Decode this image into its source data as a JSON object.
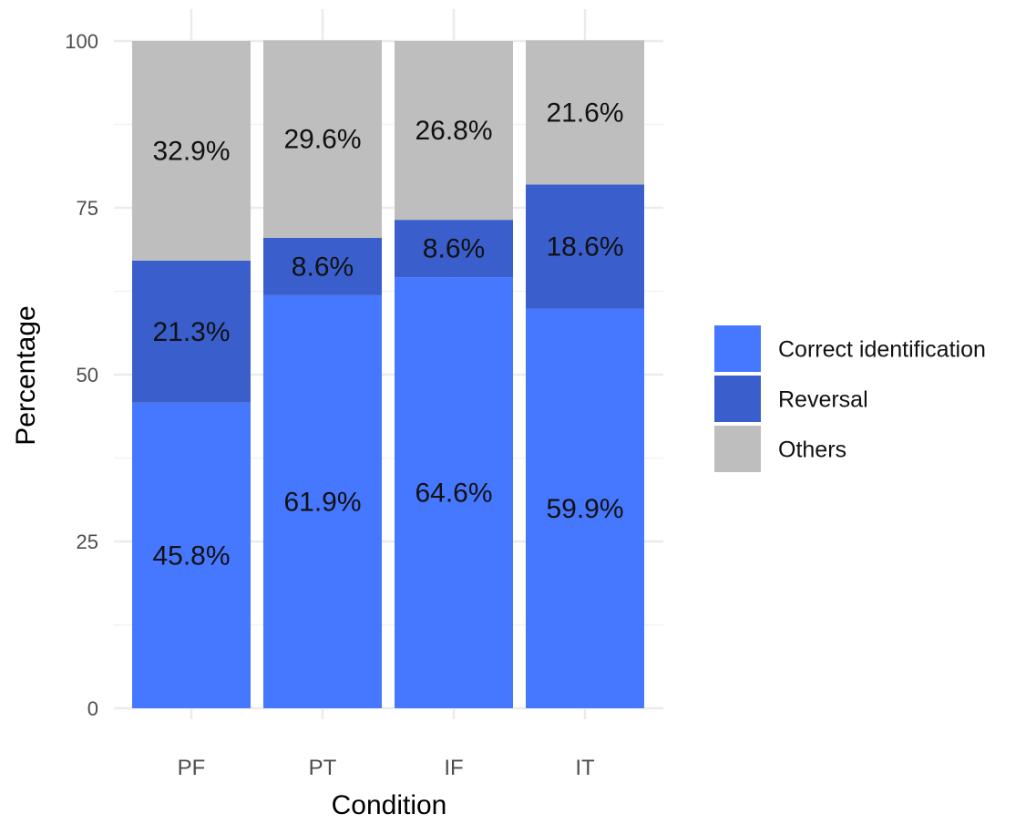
{
  "chart_data": {
    "type": "bar",
    "stacked": true,
    "categories": [
      "PF",
      "PT",
      "IF",
      "IT"
    ],
    "series": [
      {
        "name": "Correct identification",
        "color": "#4677FF",
        "values": [
          45.8,
          61.9,
          64.6,
          59.9
        ],
        "labels": [
          "45.8%",
          "61.9%",
          "64.6%",
          "59.9%"
        ]
      },
      {
        "name": "Reversal",
        "color": "#3A5FCD",
        "values": [
          21.3,
          8.6,
          8.6,
          18.6
        ],
        "labels": [
          "21.3%",
          "8.6%",
          "8.6%",
          "18.6%"
        ]
      },
      {
        "name": "Others",
        "color": "#BEBEBE",
        "values": [
          32.9,
          29.6,
          26.8,
          21.6
        ],
        "labels": [
          "32.9%",
          "29.6%",
          "26.8%",
          "21.6%"
        ]
      }
    ],
    "xlabel": "Condition",
    "ylabel": "Percentage",
    "ylim": [
      0,
      100
    ],
    "yticks": [
      0,
      25,
      50,
      75,
      100
    ],
    "grid": true,
    "legend_position": "right"
  }
}
